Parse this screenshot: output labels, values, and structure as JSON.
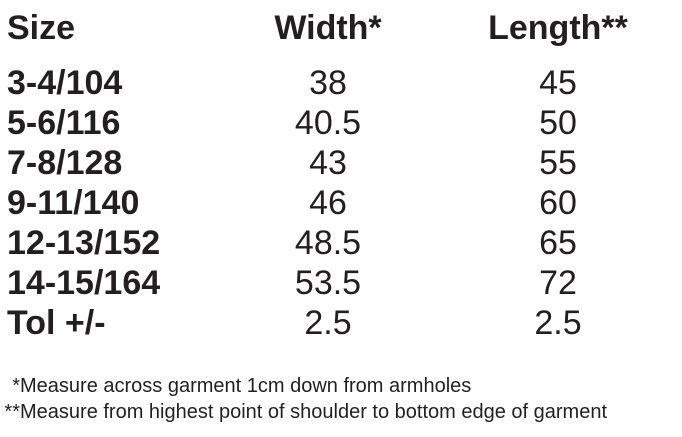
{
  "table": {
    "columns": [
      "Size",
      "Width*",
      "Length**"
    ],
    "rows": [
      {
        "size": "3-4/104",
        "width": "38",
        "length": "45"
      },
      {
        "size": "5-6/116",
        "width": "40.5",
        "length": "50"
      },
      {
        "size": "7-8/128",
        "width": "43",
        "length": "55"
      },
      {
        "size": "9-11/140",
        "width": "46",
        "length": "60"
      },
      {
        "size": "12-13/152",
        "width": "48.5",
        "length": "65"
      },
      {
        "size": "14-15/164",
        "width": "53.5",
        "length": "72"
      },
      {
        "size": "Tol +/-",
        "width": "2.5",
        "length": "2.5"
      }
    ]
  },
  "footnotes": [
    {
      "marker": "*",
      "text": "Measure across garment 1cm down from armholes"
    },
    {
      "marker": "**",
      "text": "Measure from highest point of shoulder to bottom edge of garment"
    }
  ],
  "colors": {
    "text": "#231f20",
    "background": "#ffffff"
  }
}
